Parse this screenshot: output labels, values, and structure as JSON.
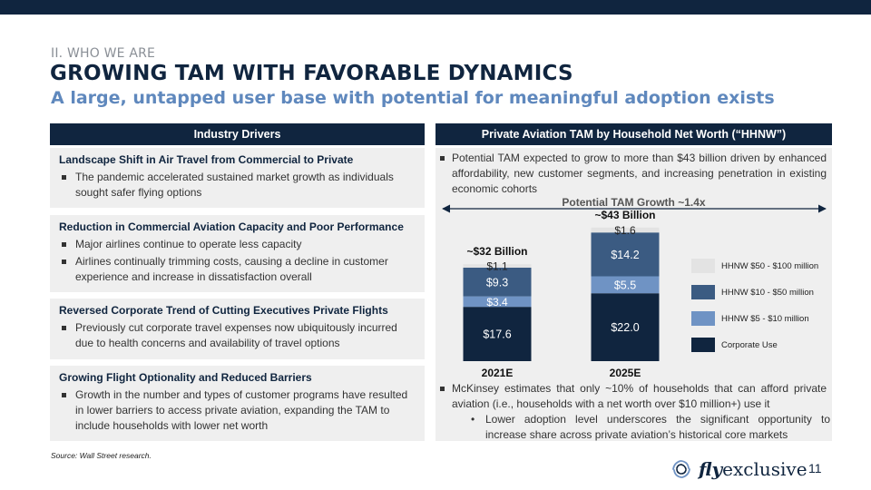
{
  "header": {
    "section": "II. WHO WE ARE",
    "title": "GROWING TAM WITH FAVORABLE DYNAMICS",
    "subtitle": "A large, untapped user base with potential for meaningful adoption exists"
  },
  "left_panel": {
    "header": "Industry Drivers",
    "drivers": [
      {
        "title": "Landscape Shift in Air Travel from Commercial to Private",
        "bullets": [
          "The pandemic accelerated sustained market growth as individuals sought safer flying options"
        ]
      },
      {
        "title": "Reduction in Commercial Aviation Capacity and Poor Performance",
        "bullets": [
          "Major airlines continue to operate less capacity",
          "Airlines continually trimming costs, causing a decline in customer experience and increase in dissatisfaction overall"
        ]
      },
      {
        "title": "Reversed Corporate Trend of Cutting Executives Private Flights",
        "bullets": [
          "Previously cut corporate travel expenses now ubiquitously incurred due to health concerns and availability of travel options"
        ]
      },
      {
        "title": "Growing Flight Optionality and Reduced Barriers",
        "bullets": [
          "Growth in the number and types of customer programs have resulted in lower barriers to access private aviation, expanding the TAM to include households with lower net worth"
        ]
      }
    ]
  },
  "right_panel": {
    "header": "Private Aviation TAM by Household Net Worth (“HHNW”)",
    "bullet_top": "Potential TAM expected to grow to more than $43 billion driven by enhanced affordability, new customer segments, and increasing penetration in existing economic cohorts",
    "growth_label": "Potential TAM Growth ~1.4x",
    "bullet_bottom": "McKinsey estimates that only ~10% of households that can afford private aviation (i.e., households with a net worth over $10 million+) use it",
    "sub_bullet_marker": "•",
    "sub_bullet": "Lower adoption level underscores the significant opportunity to increase share across private aviation’s historical core markets"
  },
  "chart_data": {
    "type": "bar",
    "stacked": true,
    "categories": [
      "2021E",
      "2025E"
    ],
    "totals": [
      "~$32 Billion",
      "~$43 Billion"
    ],
    "series": [
      {
        "name": "Corporate Use",
        "values": [
          17.6,
          22.0
        ],
        "labels": [
          "$17.6",
          "$22.0"
        ],
        "color": "#10253f"
      },
      {
        "name": "HHNW $5 - $10 million",
        "values": [
          3.4,
          5.5
        ],
        "labels": [
          "$3.4",
          "$5.5"
        ],
        "color": "#6f93c4"
      },
      {
        "name": "HHNW $10 - $50 million",
        "values": [
          9.3,
          14.2
        ],
        "labels": [
          "$9.3",
          "$14.2"
        ],
        "color": "#3b5b82"
      },
      {
        "name": "HHNW $50 - $100 million",
        "values": [
          1.1,
          1.6
        ],
        "labels": [
          "$1.1",
          "$1.6"
        ],
        "color": "#e3e3e3"
      }
    ],
    "legend_order": [
      3,
      2,
      1,
      0
    ],
    "legend_position": "right"
  },
  "footer": {
    "source": "Source: Wall Street research.",
    "brand_fly": "fly",
    "brand_rest": "exclusive",
    "page_number": "11"
  }
}
